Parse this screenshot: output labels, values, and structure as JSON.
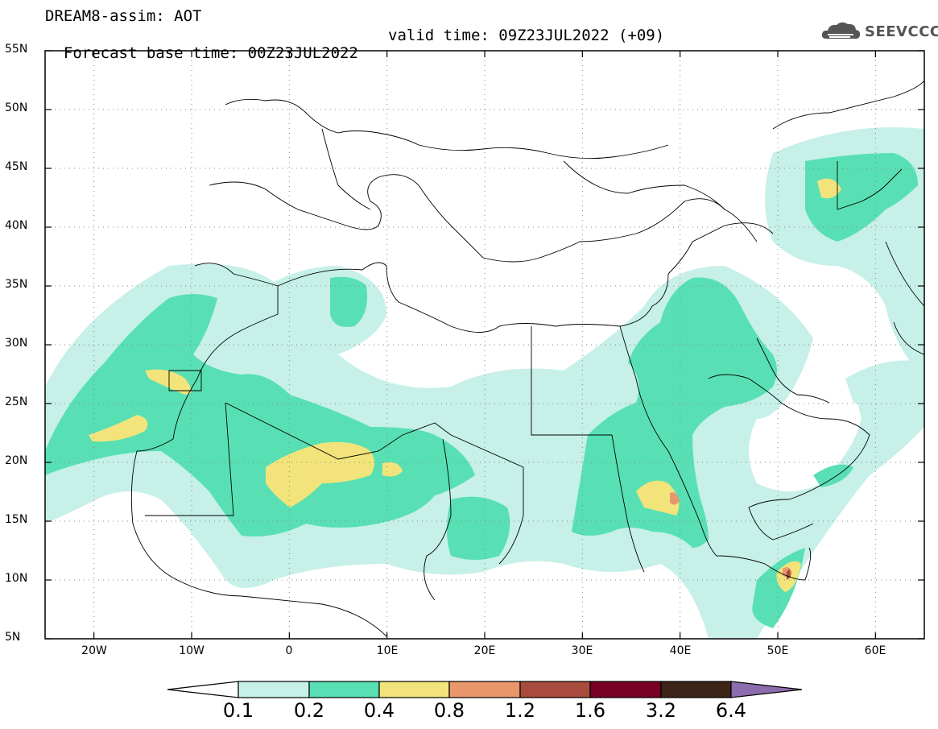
{
  "header": {
    "title": "DREAM8-assim: AOT",
    "base_time": "Forecast base time: 00Z23JUL2022",
    "valid_time": "valid time: 09Z23JUL2022 (+09)"
  },
  "logo": {
    "text": "SEEVCCC",
    "icon": "cloud-icon"
  },
  "map": {
    "projection": "lat-lon",
    "lon_range": [
      -25,
      65
    ],
    "lat_range": [
      5,
      55
    ],
    "lat_ticks": [
      "5N",
      "10N",
      "15N",
      "20N",
      "25N",
      "30N",
      "35N",
      "40N",
      "45N",
      "50N",
      "55N"
    ],
    "lon_ticks": [
      "20W",
      "10W",
      "0",
      "10E",
      "20E",
      "30E",
      "40E",
      "50E",
      "60E"
    ],
    "grid": "dotted",
    "variable": "AOT"
  },
  "colorbar": {
    "labels": [
      "0.1",
      "0.2",
      "0.4",
      "0.8",
      "1.2",
      "1.6",
      "3.2",
      "6.4"
    ],
    "colors": [
      "#ffffff",
      "#c6f0e8",
      "#58e0b4",
      "#f2e47a",
      "#e8966a",
      "#a84a3c",
      "#780024",
      "#3c2418",
      "#8c6cac"
    ]
  }
}
